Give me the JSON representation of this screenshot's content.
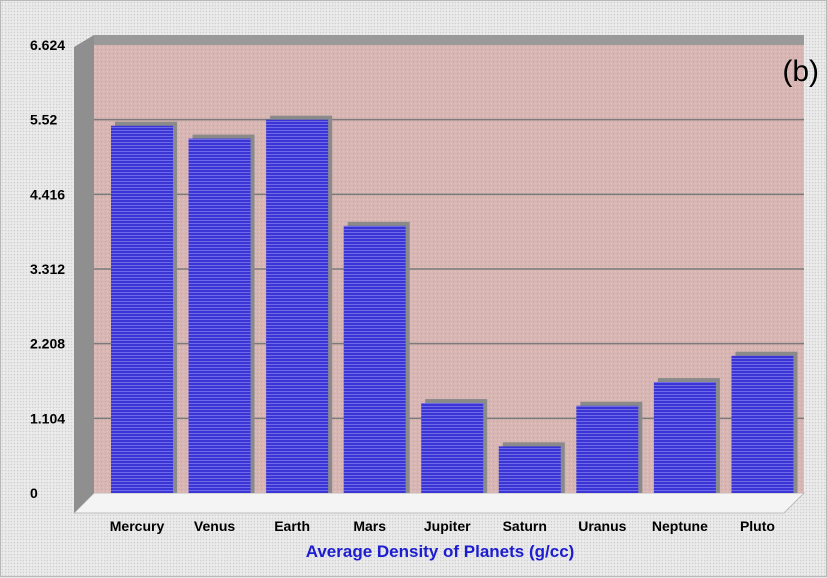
{
  "chart_data": {
    "type": "bar",
    "categories": [
      "Mercury",
      "Venus",
      "Earth",
      "Mars",
      "Jupiter",
      "Saturn",
      "Uranus",
      "Neptune",
      "Pluto"
    ],
    "values": [
      5.43,
      5.24,
      5.52,
      3.95,
      1.33,
      0.69,
      1.29,
      1.64,
      2.03
    ],
    "yticks": [
      "0",
      "1.104",
      "2.208",
      "3.312",
      "4.416",
      "5.52",
      "6.624"
    ],
    "ylim": [
      0,
      6.624
    ],
    "title": "",
    "xlabel": "Average Density of Planets (g/cc)",
    "ylabel": "",
    "annotation": "(b)",
    "grid": true,
    "colors": {
      "plot_background": "#d7b6b4",
      "bar": "#3b35d6",
      "bar_stripe": "#6f6ae8",
      "grid": "#7a7a7a",
      "xlabel": "#1c1cd0"
    }
  }
}
